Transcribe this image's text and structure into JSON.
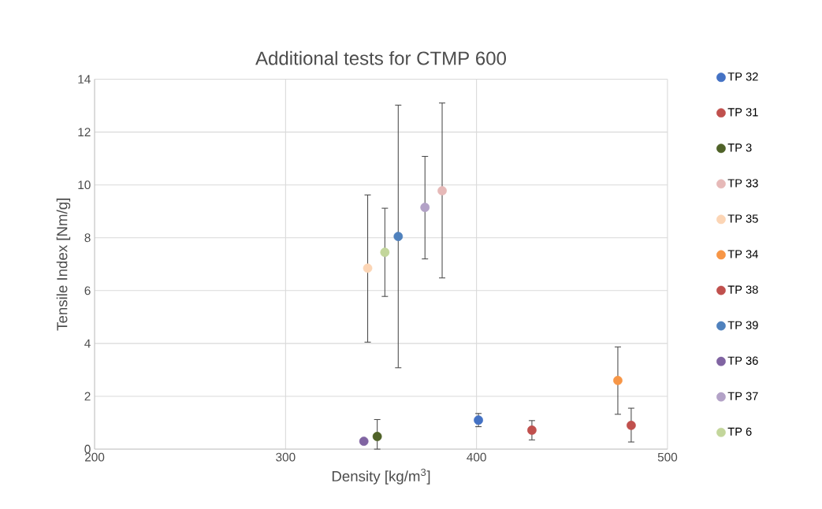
{
  "chart_data": {
    "type": "scatter",
    "title": "Additional tests for CTMP 600",
    "xlabel": "Density [kg/m$^{3}$]",
    "ylabel": "Tensile Index [Nm/g]",
    "xlim": [
      200,
      500
    ],
    "xticks": [
      200,
      300,
      400,
      500
    ],
    "ylim": [
      0,
      14
    ],
    "yticks": [
      0,
      2,
      4,
      6,
      8,
      10,
      12,
      14
    ],
    "grid": true,
    "legend": "right",
    "marker": "circle",
    "series": [
      {
        "name": "TP 32",
        "color": "#4472c4",
        "x": [
          401
        ],
        "values": [
          1.1
        ],
        "errors": [
          [
            0.85,
            1.35
          ]
        ]
      },
      {
        "name": "TP 31",
        "color": "#c0504d",
        "x": [
          429
        ],
        "values": [
          0.72
        ],
        "errors": [
          [
            0.35,
            1.08
          ]
        ]
      },
      {
        "name": "TP 3",
        "color": "#4f6228",
        "x": [
          348
        ],
        "values": [
          0.48
        ],
        "errors": [
          [
            0,
            1.12
          ]
        ]
      },
      {
        "name": "TP 33",
        "color": "#e6b9b8",
        "x": [
          382
        ],
        "values": [
          9.78
        ],
        "errors": [
          [
            6.48,
            13.1
          ]
        ]
      },
      {
        "name": "TP 35",
        "color": "#fcd5b5",
        "x": [
          343
        ],
        "values": [
          6.85
        ],
        "errors": [
          [
            4.05,
            9.62
          ]
        ]
      },
      {
        "name": "TP 34",
        "color": "#f79646",
        "x": [
          474
        ],
        "values": [
          2.6
        ],
        "errors": [
          [
            1.32,
            3.87
          ]
        ]
      },
      {
        "name": "TP 38",
        "color": "#c0504d",
        "x": [
          481
        ],
        "values": [
          0.9
        ],
        "errors": [
          [
            0.27,
            1.55
          ]
        ]
      },
      {
        "name": "TP 39",
        "color": "#4f81bd",
        "x": [
          359
        ],
        "values": [
          8.05
        ],
        "errors": [
          [
            3.08,
            13.02
          ]
        ]
      },
      {
        "name": "TP 36",
        "color": "#8064a2",
        "x": [
          341
        ],
        "values": [
          0.3
        ],
        "errors": [
          null
        ]
      },
      {
        "name": "TP 37",
        "color": "#b3a2c7",
        "x": [
          373
        ],
        "values": [
          9.15
        ],
        "errors": [
          [
            7.2,
            11.08
          ]
        ]
      },
      {
        "name": "TP 6",
        "color": "#c3d69b",
        "x": [
          352
        ],
        "values": [
          7.45
        ],
        "errors": [
          [
            5.78,
            9.12
          ]
        ]
      }
    ]
  }
}
